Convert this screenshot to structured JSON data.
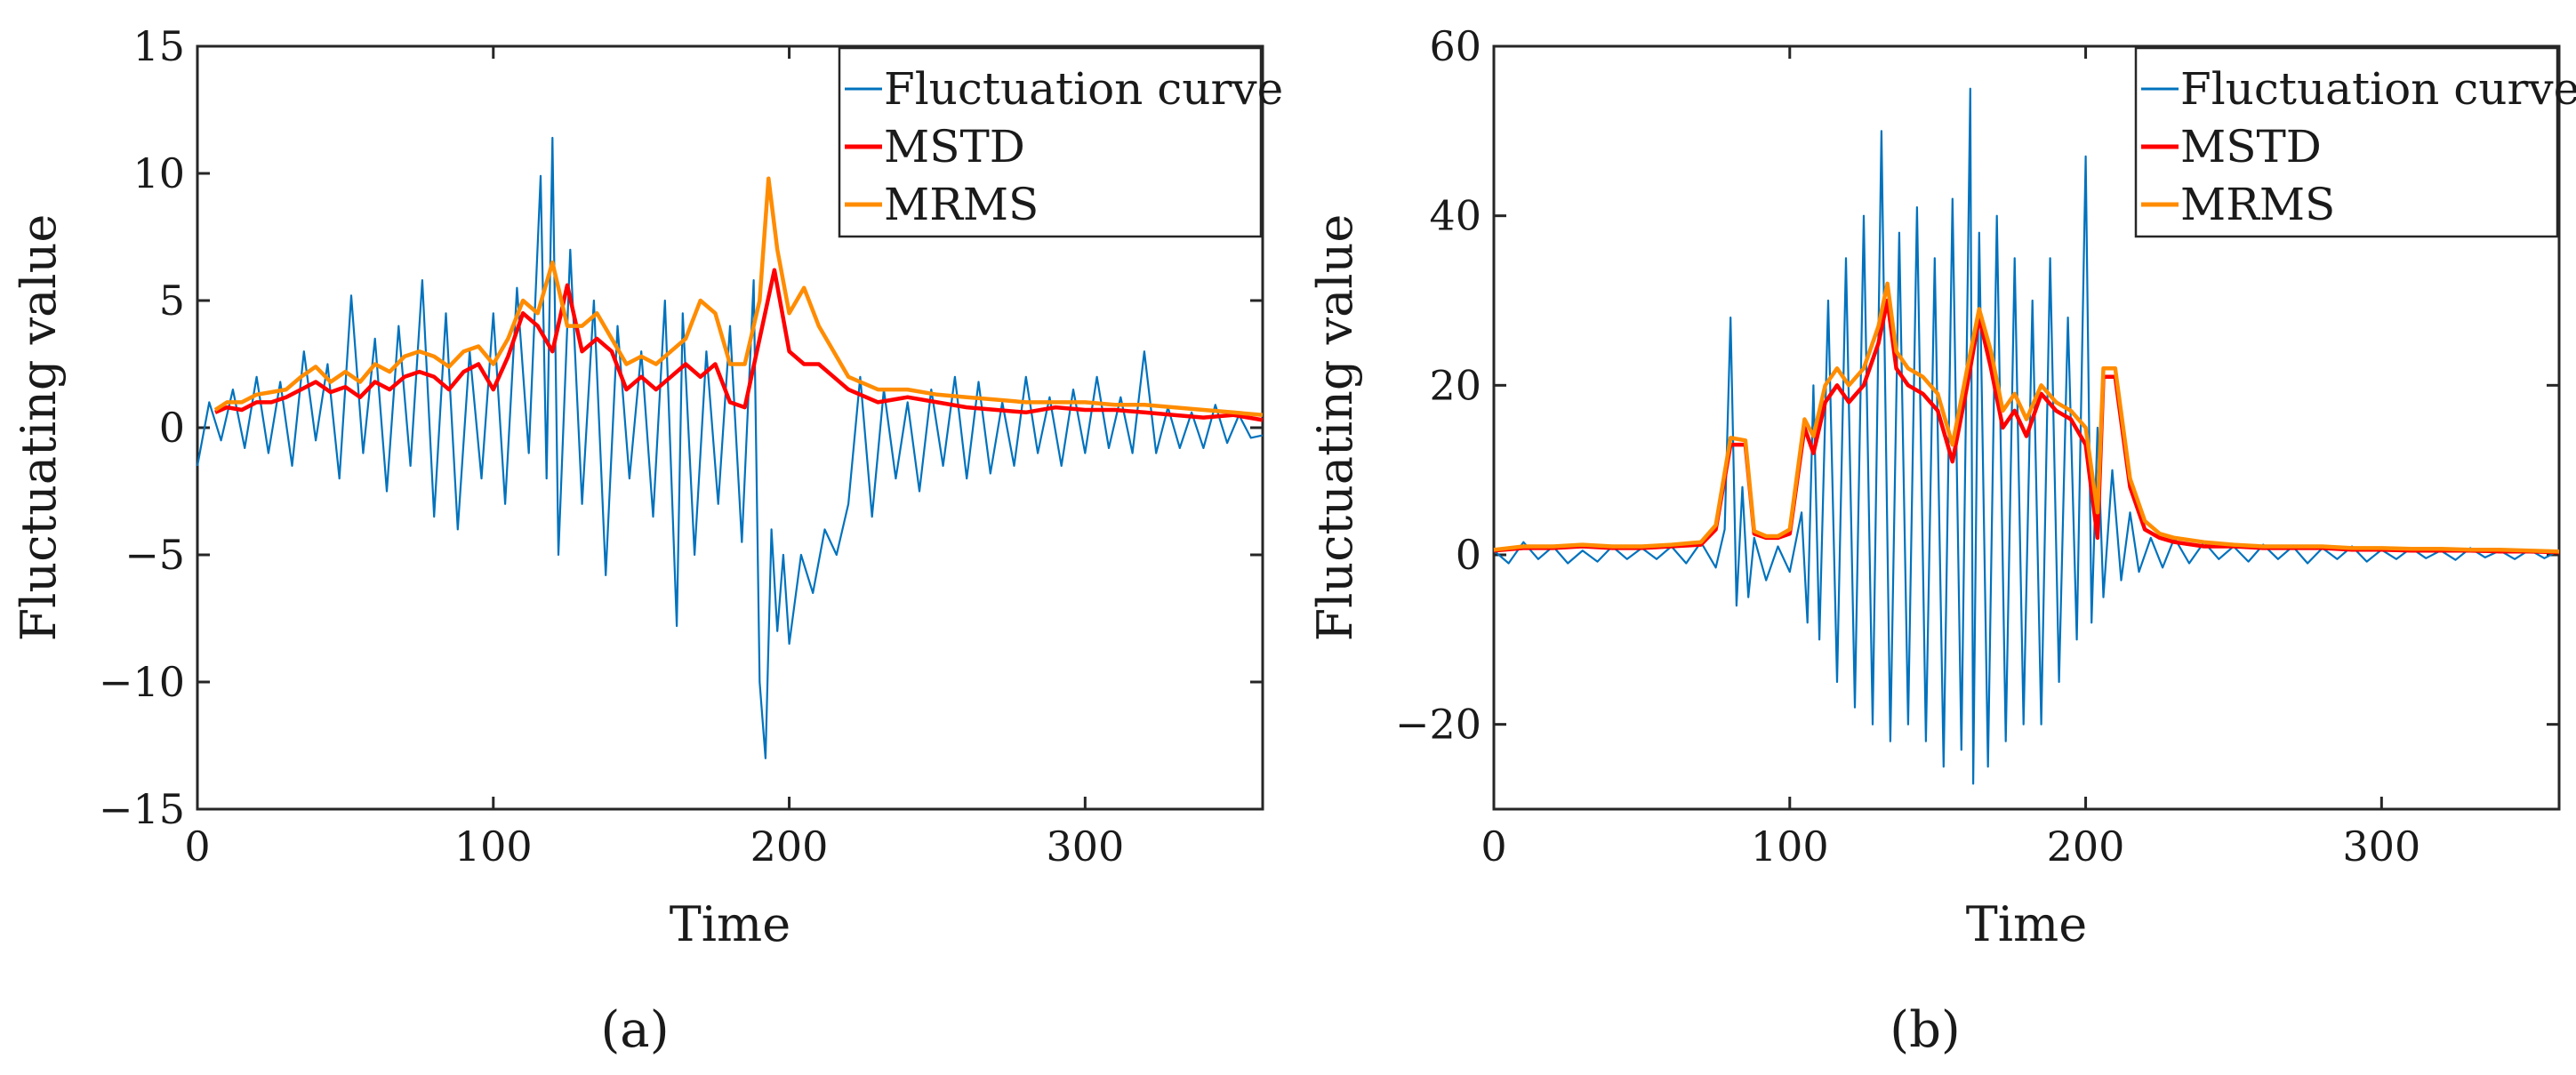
{
  "colors": {
    "fluctuation": "#0072BD",
    "mstd": "#FF0000",
    "mrms": "#FF8C00",
    "axis": "#262626"
  },
  "chart_data": [
    {
      "type": "line",
      "panel_label": "(a)",
      "xlabel": "Time",
      "ylabel": "Fluctuating value",
      "xlim": [
        0,
        360
      ],
      "ylim": [
        -15,
        15
      ],
      "xticks": [
        0,
        100,
        200,
        300
      ],
      "xtick_labels": [
        "0",
        "100",
        "200",
        "300"
      ],
      "yticks": [
        -15,
        -10,
        -5,
        0,
        5,
        10,
        15
      ],
      "ytick_labels": [
        "−15",
        "−10",
        "−5",
        "0",
        "5",
        "10",
        "15"
      ],
      "legend": [
        "Fluctuation curve",
        "MSTD",
        "MRMS"
      ],
      "legend_position": "top-right",
      "series": [
        {
          "name": "Fluctuation curve",
          "x": [
            0,
            4,
            8,
            12,
            16,
            20,
            24,
            28,
            32,
            36,
            40,
            44,
            48,
            52,
            56,
            60,
            64,
            68,
            72,
            76,
            80,
            84,
            88,
            92,
            96,
            100,
            104,
            108,
            112,
            116,
            118,
            120,
            122,
            126,
            130,
            134,
            138,
            142,
            146,
            150,
            154,
            158,
            162,
            164,
            168,
            172,
            176,
            180,
            184,
            188,
            190,
            192,
            194,
            196,
            198,
            200,
            204,
            208,
            212,
            216,
            220,
            224,
            228,
            232,
            236,
            240,
            244,
            248,
            252,
            256,
            260,
            264,
            268,
            272,
            276,
            280,
            284,
            288,
            292,
            296,
            300,
            304,
            308,
            312,
            316,
            320,
            324,
            328,
            332,
            336,
            340,
            344,
            348,
            352,
            356,
            360
          ],
          "values": [
            -1.5,
            1.0,
            -0.5,
            1.5,
            -0.8,
            2.0,
            -1.0,
            1.8,
            -1.5,
            3.0,
            -0.5,
            2.5,
            -2.0,
            5.2,
            -1.0,
            3.5,
            -2.5,
            4.0,
            -1.5,
            5.8,
            -3.5,
            4.5,
            -4.0,
            3.0,
            -2.0,
            4.5,
            -3.0,
            5.5,
            -1.0,
            9.9,
            -2.0,
            11.4,
            -5.0,
            7.0,
            -3.0,
            5.0,
            -5.8,
            4.0,
            -2.0,
            3.0,
            -3.5,
            5.0,
            -7.8,
            4.5,
            -5.0,
            3.0,
            -3.0,
            4.0,
            -4.5,
            5.8,
            -10.0,
            -13.0,
            -4.0,
            -8.0,
            -5.0,
            -8.5,
            -5.0,
            -6.5,
            -4.0,
            -5.0,
            -3.0,
            2.0,
            -3.5,
            1.5,
            -2.0,
            1.0,
            -2.5,
            1.5,
            -1.5,
            2.0,
            -2.0,
            1.8,
            -1.8,
            1.0,
            -1.5,
            2.0,
            -1.0,
            1.2,
            -1.5,
            1.5,
            -1.0,
            2.0,
            -0.8,
            1.2,
            -1.0,
            3.0,
            -1.0,
            0.8,
            -0.8,
            0.6,
            -0.8,
            0.9,
            -0.6,
            0.5,
            -0.4,
            -0.3
          ]
        },
        {
          "name": "MSTD",
          "x": [
            6,
            10,
            15,
            20,
            25,
            30,
            35,
            40,
            45,
            50,
            55,
            60,
            65,
            70,
            75,
            80,
            85,
            90,
            95,
            100,
            105,
            110,
            115,
            120,
            125,
            130,
            135,
            140,
            145,
            150,
            155,
            160,
            165,
            170,
            175,
            180,
            185,
            190,
            195,
            200,
            205,
            210,
            215,
            220,
            230,
            240,
            250,
            260,
            270,
            280,
            290,
            300,
            310,
            320,
            330,
            340,
            350,
            360
          ],
          "values": [
            0.6,
            0.8,
            0.7,
            1.0,
            1.0,
            1.2,
            1.5,
            1.8,
            1.4,
            1.6,
            1.2,
            1.8,
            1.5,
            2.0,
            2.2,
            2.0,
            1.5,
            2.2,
            2.5,
            1.5,
            2.8,
            4.5,
            4.0,
            3.0,
            5.6,
            3.0,
            3.5,
            3.0,
            1.5,
            2.0,
            1.5,
            2.0,
            2.5,
            2.0,
            2.5,
            1.0,
            0.8,
            3.5,
            6.2,
            3.0,
            2.5,
            2.5,
            2.0,
            1.5,
            1.0,
            1.2,
            1.0,
            0.8,
            0.7,
            0.6,
            0.8,
            0.7,
            0.7,
            0.6,
            0.5,
            0.4,
            0.5,
            0.3
          ]
        },
        {
          "name": "MRMS",
          "x": [
            6,
            10,
            15,
            20,
            25,
            30,
            35,
            40,
            45,
            50,
            55,
            60,
            65,
            70,
            75,
            80,
            85,
            90,
            95,
            100,
            105,
            110,
            115,
            120,
            125,
            130,
            135,
            140,
            145,
            150,
            155,
            160,
            165,
            170,
            175,
            180,
            185,
            190,
            193,
            196,
            200,
            205,
            210,
            215,
            220,
            230,
            240,
            250,
            260,
            270,
            280,
            290,
            300,
            310,
            320,
            330,
            340,
            350,
            360
          ],
          "values": [
            0.7,
            1.0,
            1.0,
            1.3,
            1.4,
            1.5,
            2.0,
            2.4,
            1.8,
            2.2,
            1.8,
            2.5,
            2.2,
            2.8,
            3.0,
            2.8,
            2.4,
            3.0,
            3.2,
            2.5,
            3.5,
            5.0,
            4.5,
            6.5,
            4.0,
            4.0,
            4.5,
            3.5,
            2.5,
            2.8,
            2.5,
            3.0,
            3.5,
            5.0,
            4.5,
            2.5,
            2.5,
            5.0,
            9.8,
            7.0,
            4.5,
            5.5,
            4.0,
            3.0,
            2.0,
            1.5,
            1.5,
            1.3,
            1.2,
            1.1,
            1.0,
            1.0,
            1.0,
            0.9,
            0.9,
            0.8,
            0.7,
            0.6,
            0.5
          ]
        }
      ]
    },
    {
      "type": "line",
      "panel_label": "(b)",
      "xlabel": "Time",
      "ylabel": "Fluctuating value",
      "xlim": [
        0,
        360
      ],
      "ylim": [
        -30,
        60
      ],
      "xticks": [
        0,
        100,
        200,
        300
      ],
      "xtick_labels": [
        "0",
        "100",
        "200",
        "300"
      ],
      "yticks": [
        -20,
        0,
        20,
        40,
        60
      ],
      "ytick_labels": [
        "−20",
        "0",
        "20",
        "40",
        "60"
      ],
      "legend": [
        "Fluctuation curve",
        "MSTD",
        "MRMS"
      ],
      "legend_position": "top-right",
      "series": [
        {
          "name": "Fluctuation curve",
          "x": [
            0,
            5,
            10,
            15,
            20,
            25,
            30,
            35,
            40,
            45,
            50,
            55,
            60,
            65,
            70,
            75,
            78,
            80,
            82,
            84,
            86,
            88,
            92,
            96,
            100,
            104,
            106,
            108,
            110,
            113,
            116,
            119,
            122,
            125,
            128,
            131,
            134,
            137,
            140,
            143,
            146,
            149,
            152,
            155,
            158,
            161,
            162,
            164,
            167,
            170,
            173,
            176,
            179,
            182,
            185,
            188,
            191,
            194,
            197,
            200,
            202,
            204,
            206,
            209,
            212,
            215,
            218,
            222,
            226,
            230,
            235,
            240,
            245,
            250,
            255,
            260,
            265,
            270,
            275,
            280,
            285,
            290,
            295,
            300,
            305,
            310,
            315,
            320,
            325,
            330,
            335,
            340,
            345,
            350,
            355,
            360
          ],
          "values": [
            0.5,
            -1.0,
            1.5,
            -0.5,
            1.0,
            -1.0,
            0.5,
            -0.8,
            1.0,
            -0.5,
            0.8,
            -0.5,
            1.0,
            -1.0,
            1.5,
            -1.5,
            3.0,
            28.0,
            -6.0,
            8.0,
            -5.0,
            2.0,
            -3.0,
            1.0,
            -2.0,
            5.0,
            -8.0,
            20.0,
            -10.0,
            30.0,
            -15.0,
            35.0,
            -18.0,
            40.0,
            -20.0,
            50.0,
            -22.0,
            38.0,
            -20.0,
            41.0,
            -22.0,
            35.0,
            -25.0,
            42.0,
            -23.0,
            55.0,
            -27.0,
            38.0,
            -25.0,
            40.0,
            -22.0,
            35.0,
            -20.0,
            30.0,
            -20.0,
            35.0,
            -15.0,
            28.0,
            -10.0,
            47.0,
            -8.0,
            15.0,
            -5.0,
            10.0,
            -3.0,
            5.0,
            -2.0,
            2.0,
            -1.5,
            2.0,
            -1.0,
            1.5,
            -0.5,
            1.0,
            -0.8,
            1.2,
            -0.5,
            1.0,
            -1.0,
            0.8,
            -0.5,
            1.0,
            -0.8,
            0.6,
            -0.5,
            0.8,
            -0.4,
            0.5,
            -0.6,
            0.8,
            -0.3,
            0.5,
            -0.5,
            0.6,
            -0.4,
            0.5
          ]
        },
        {
          "name": "MSTD",
          "x": [
            0,
            10,
            20,
            30,
            40,
            50,
            60,
            70,
            75,
            80,
            85,
            88,
            92,
            96,
            100,
            105,
            108,
            112,
            116,
            120,
            125,
            130,
            133,
            136,
            140,
            145,
            150,
            155,
            160,
            164,
            168,
            172,
            176,
            180,
            185,
            190,
            195,
            200,
            204,
            206,
            210,
            215,
            220,
            225,
            230,
            240,
            250,
            260,
            270,
            280,
            290,
            300,
            310,
            320,
            330,
            340,
            350,
            360
          ],
          "values": [
            0.5,
            0.8,
            0.8,
            1.0,
            0.8,
            0.8,
            1.0,
            1.2,
            3.0,
            13.0,
            13.0,
            2.5,
            2.0,
            2.0,
            2.5,
            15.0,
            12.0,
            18.0,
            20.0,
            18.0,
            20.0,
            25.0,
            30.0,
            22.0,
            20.0,
            19.0,
            17.0,
            11.0,
            20.0,
            28.0,
            22.0,
            15.0,
            17.0,
            14.0,
            19.0,
            17.0,
            16.0,
            13.0,
            2.0,
            21.0,
            21.0,
            8.0,
            3.0,
            2.0,
            1.5,
            1.0,
            1.0,
            0.8,
            0.8,
            0.8,
            0.6,
            0.6,
            0.5,
            0.5,
            0.5,
            0.4,
            0.4,
            0.3
          ]
        },
        {
          "name": "MRMS",
          "x": [
            0,
            10,
            20,
            30,
            40,
            50,
            60,
            70,
            75,
            80,
            85,
            88,
            92,
            96,
            100,
            105,
            108,
            112,
            116,
            120,
            125,
            130,
            133,
            136,
            140,
            145,
            150,
            155,
            160,
            164,
            168,
            172,
            176,
            180,
            185,
            190,
            195,
            200,
            204,
            206,
            210,
            215,
            220,
            225,
            230,
            240,
            250,
            260,
            270,
            280,
            290,
            300,
            310,
            320,
            330,
            340,
            350,
            360
          ],
          "values": [
            0.6,
            1.0,
            1.0,
            1.2,
            1.0,
            1.0,
            1.2,
            1.5,
            3.5,
            13.8,
            13.5,
            2.8,
            2.2,
            2.2,
            3.0,
            16.0,
            14.0,
            20.0,
            22.0,
            20.0,
            22.0,
            27.0,
            32.0,
            24.0,
            22.0,
            21.0,
            19.0,
            13.0,
            22.0,
            29.0,
            24.0,
            17.0,
            19.0,
            16.0,
            20.0,
            18.0,
            17.0,
            15.0,
            5.0,
            22.0,
            22.0,
            9.0,
            4.0,
            2.5,
            2.0,
            1.5,
            1.2,
            1.0,
            1.0,
            1.0,
            0.8,
            0.8,
            0.7,
            0.7,
            0.6,
            0.6,
            0.5,
            0.4
          ]
        }
      ]
    }
  ]
}
